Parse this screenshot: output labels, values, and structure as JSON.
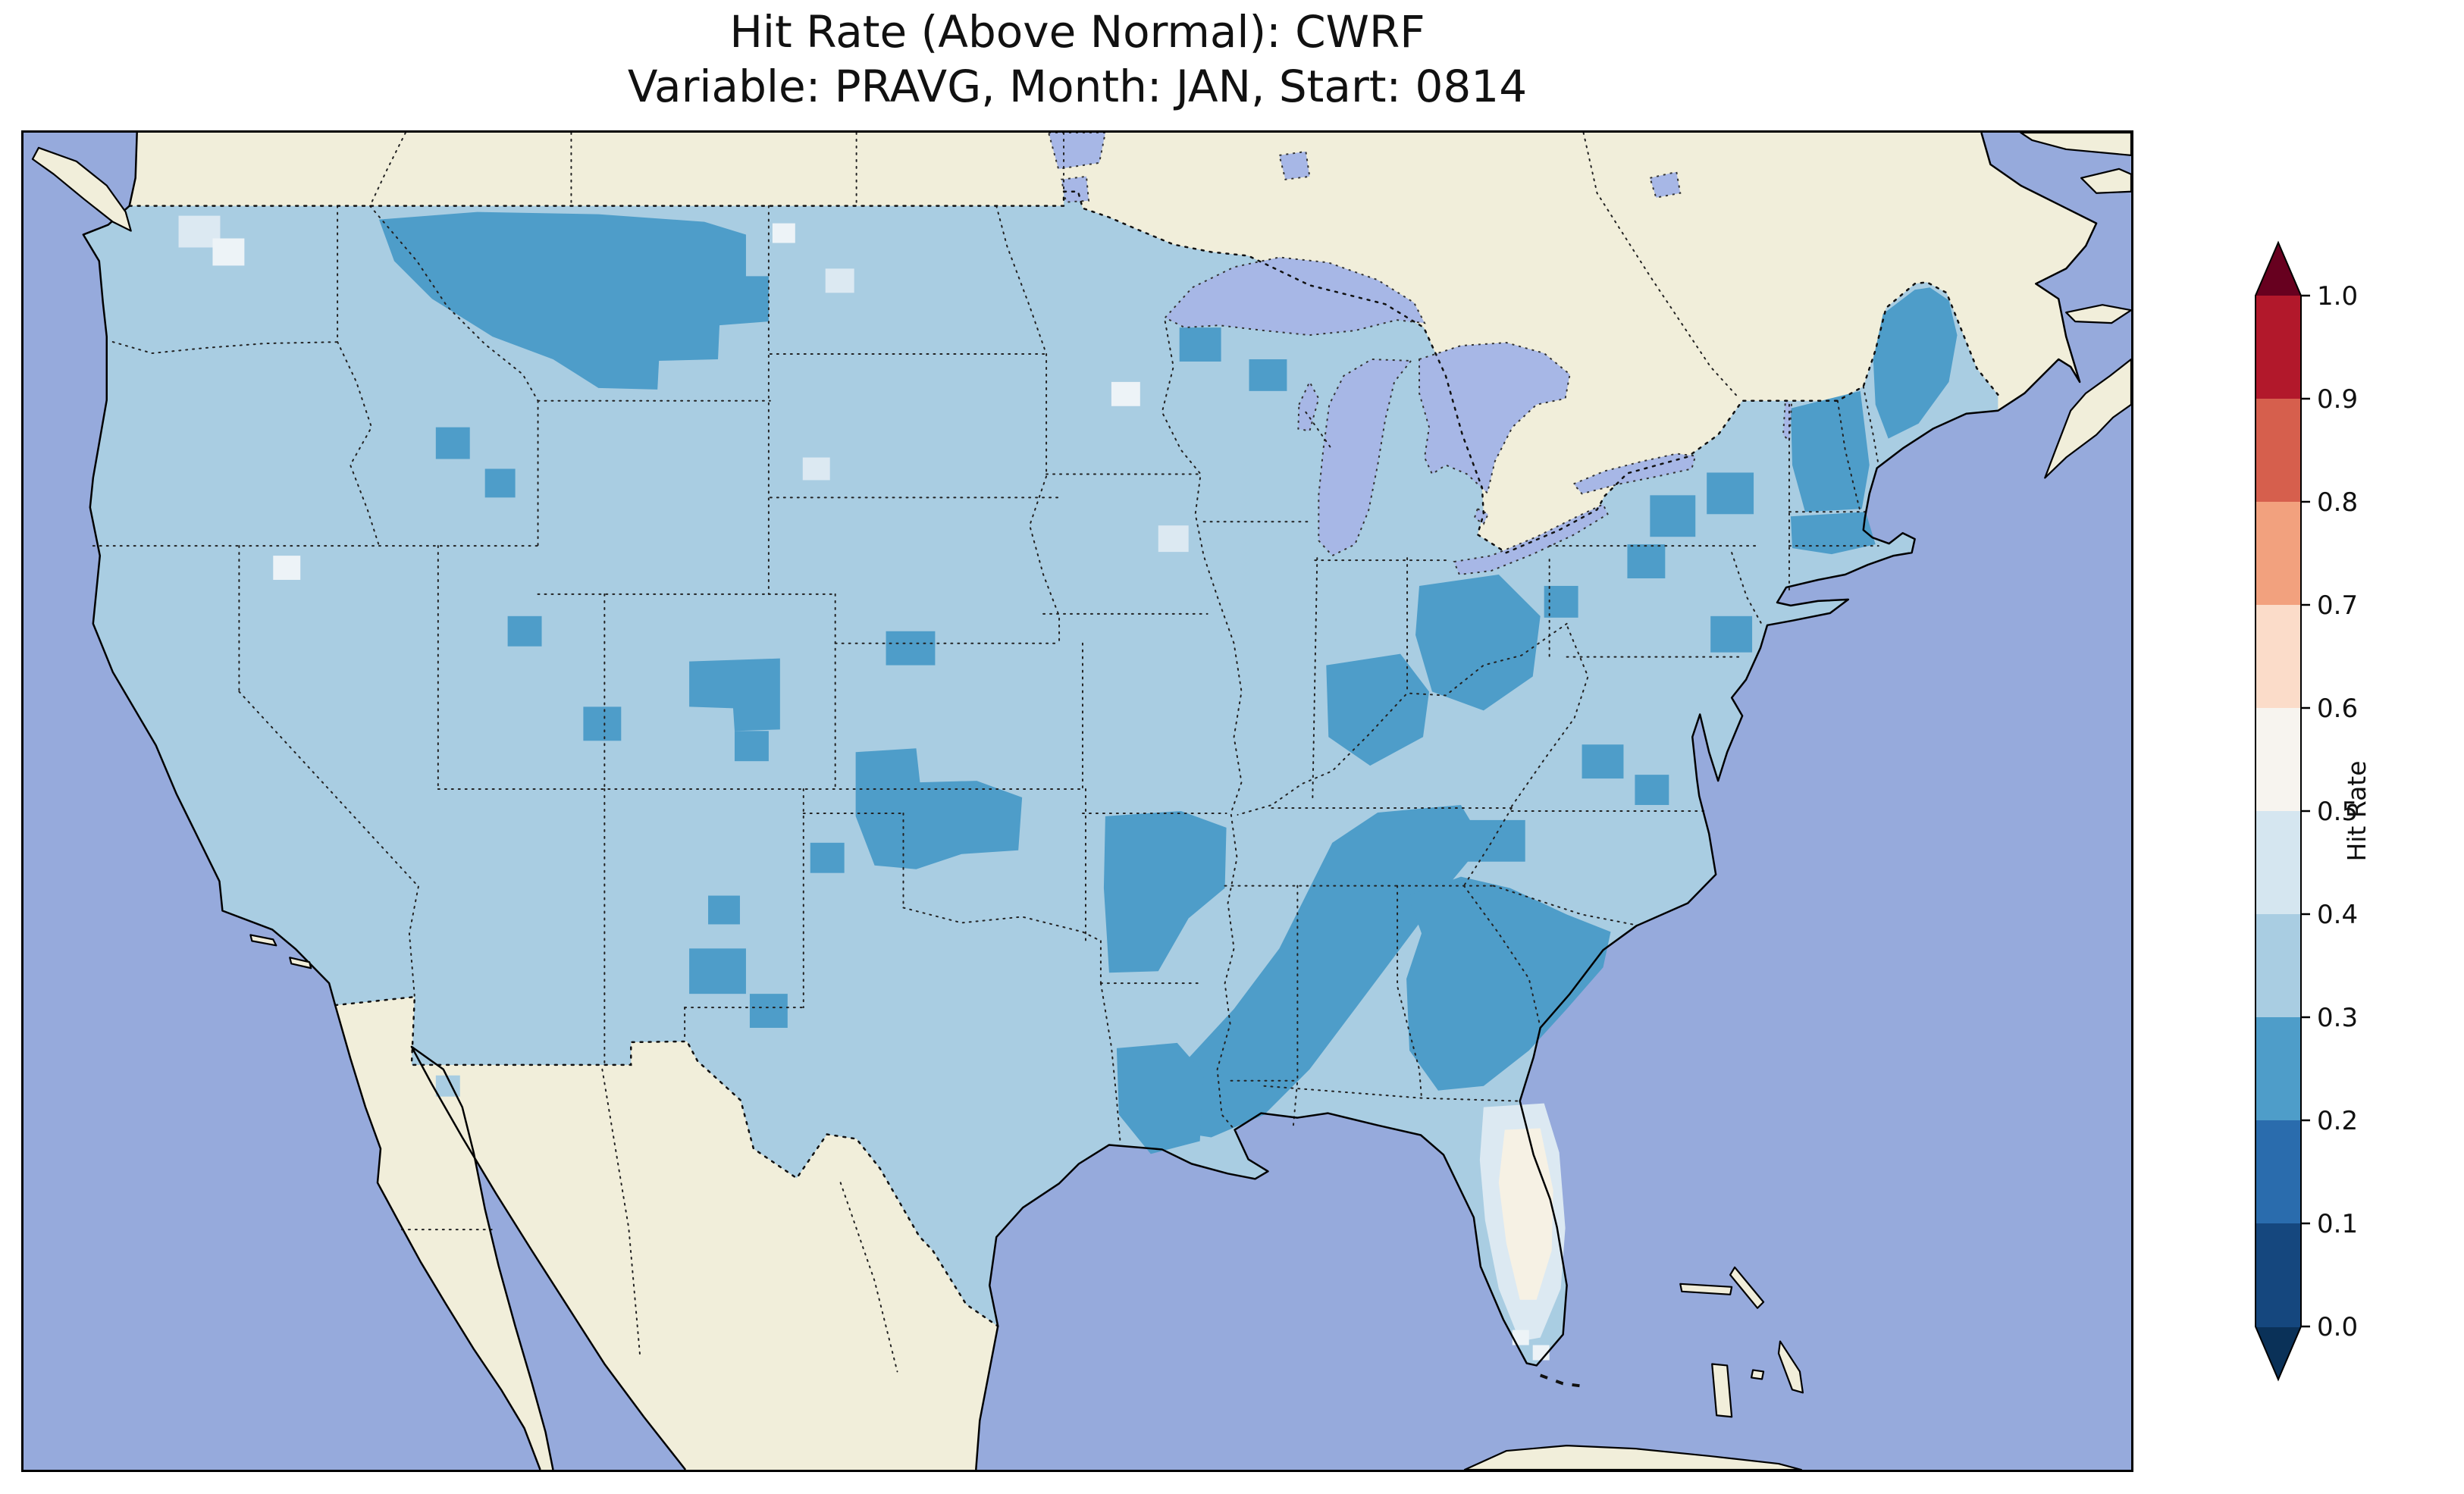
{
  "title": {
    "line1": "Hit Rate (Above Normal): CWRF",
    "line2": "Variable: PRAVG, Month: JAN, Start: 0814"
  },
  "colorbar": {
    "label": "Hit Rate",
    "ticks_top_to_bottom": [
      "1.0",
      "0.9",
      "0.8",
      "0.7",
      "0.6",
      "0.5",
      "0.4",
      "0.3",
      "0.2",
      "0.1",
      "0.0"
    ],
    "segments_top_to_bottom": [
      "#b2182b",
      "#d65f4d",
      "#f2a17e",
      "#fbdcc9",
      "#f7f4ef",
      "#d5e6f0",
      "#a9cde2",
      "#4e9dc9",
      "#2a6cad",
      "#15477e"
    ],
    "extend_over_color": "#67001f",
    "extend_under_color": "#0a3158",
    "range": [
      0.0,
      1.0
    ],
    "tick_step": 0.1
  },
  "map_colors": {
    "ocean": "#96aadc",
    "land": "#f1eeda",
    "lakes": "#a7b7e6",
    "hit_rate_0_2_to_0_3": "#4e9dc9",
    "hit_rate_0_3_to_0_4": "#a9cde2",
    "hit_rate_0_4_to_0_5": "#dce9f2",
    "hit_rate_0_5_to_0_6": "#f6f1e4"
  },
  "chart_data": {
    "type": "heatmap",
    "title": "Hit Rate (Above Normal): CWRF",
    "subtitle": "Variable: PRAVG, Month: JAN, Start: 0814",
    "model": "CWRF",
    "variable": "PRAVG",
    "month": "JAN",
    "start": "0814",
    "category": "Above Normal",
    "colorbar": {
      "label": "Hit Rate",
      "range": [
        0.0,
        1.0
      ],
      "tick_step": 0.1,
      "colormap": "RdBu_r (discrete, 0.1 bins)",
      "extend": "both"
    },
    "region": "Contiguous United States, gridded field over a North America map (oceans, Canada and Mexico unshaded)",
    "regional_values": [
      {
        "region": "Most of CONUS (default)",
        "hit_rate": "0.3-0.4"
      },
      {
        "region": "Montana / northern Rockies blob",
        "hit_rate": "0.2-0.3"
      },
      {
        "region": "Ohio Valley and Appalachians",
        "hit_rate": "0.2-0.3"
      },
      {
        "region": "Tennessee-Mississippi-Alabama band down to Louisiana",
        "hit_rate": "0.2-0.3"
      },
      {
        "region": "Arkansas / southern Missouri",
        "hit_rate": "0.2-0.3"
      },
      {
        "region": "Southeast (Georgia, Carolinas)",
        "hit_rate": "0.2-0.3"
      },
      {
        "region": "Kansas / Oklahoma patches",
        "hit_rate": "0.2-0.3"
      },
      {
        "region": "Scattered Colorado, Utah, Idaho, west Texas cells",
        "hit_rate": "0.2-0.3"
      },
      {
        "region": "New England, Maine, upstate New York",
        "hit_rate": "0.2-0.3"
      },
      {
        "region": "Florida peninsula",
        "hit_rate": "0.4-0.6"
      },
      {
        "region": "Scattered NW Washington and northern Plains cells",
        "hit_rate": "0.4-0.6"
      }
    ]
  }
}
